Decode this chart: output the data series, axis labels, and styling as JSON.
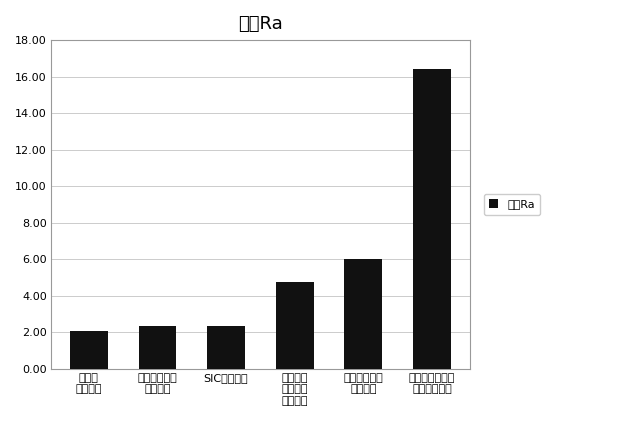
{
  "title": "平均Ra",
  "categories": [
    "研究所\n旋盤処理",
    "ミル加工表面\nサンプル",
    "SIC研削処理",
    "製造施設\n旋盤処理\nサンプル",
    "新品機械加工\nサンプル",
    "ソルトブラスト\n処理サンプル"
  ],
  "values": [
    2.08,
    2.32,
    2.35,
    4.75,
    6.0,
    16.4
  ],
  "bar_color": "#111111",
  "legend_label": "平均Ra",
  "ylim": [
    0,
    18.0
  ],
  "yticks": [
    0.0,
    2.0,
    4.0,
    6.0,
    8.0,
    10.0,
    12.0,
    14.0,
    16.0,
    18.0
  ],
  "background_color": "#ffffff",
  "plot_bg_color": "#ffffff",
  "title_fontsize": 13,
  "tick_fontsize": 8,
  "legend_fontsize": 8,
  "grid_color": "#cccccc",
  "border_color": "#999999"
}
